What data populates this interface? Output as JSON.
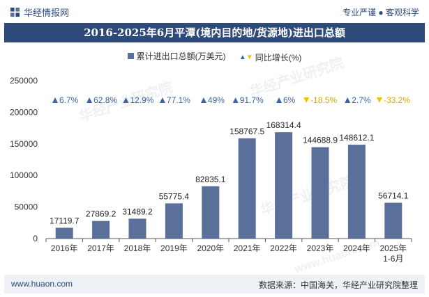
{
  "header": {
    "brand": "华经情报网",
    "tagline": "专业严谨 ● 客观科学"
  },
  "title": "2016-2025年6月平潭(境内目的地/货源地)进出口总额",
  "legend": {
    "bar_label": "累计进出口总额(万美元)",
    "line_label": "同比增长(%)"
  },
  "watermarks": [
    "华经产业研究院",
    "华经产业研究院",
    "华经产业研究院",
    "www.huaon.com"
  ],
  "footer": {
    "left": "www.huaon.com",
    "right": "数据来源：中国海关，华经产业研究院整理"
  },
  "colors": {
    "bar": "#5a6f99",
    "up": "#3e64a3",
    "down": "#f2c400",
    "title_bg": "#2e4a78"
  },
  "chart_data": {
    "type": "bar",
    "categories": [
      "2016年",
      "2017年",
      "2018年",
      "2019年",
      "2020年",
      "2021年",
      "2022年",
      "2023年",
      "2024年",
      "2025年\n1-6月"
    ],
    "series": [
      {
        "name": "累计进出口总额(万美元)",
        "values": [
          17119.7,
          27869.2,
          31489.2,
          55775.4,
          82835.1,
          158767.5,
          168314.4,
          144688.9,
          148612.1,
          56714.1
        ]
      }
    ],
    "growth": {
      "name": "同比增长(%)",
      "values": [
        6.7,
        62.8,
        12.9,
        77.1,
        49,
        91.7,
        6,
        -18.5,
        2.7,
        -33.2
      ],
      "labels": [
        "6.7%",
        "62.8%",
        "12.9%",
        "77.1%",
        "49%",
        "91.7%",
        "6%",
        "-18.5%",
        "2.7%",
        "-33.2%"
      ]
    },
    "value_labels": [
      "17119.7",
      "27869.2",
      "31489.2",
      "55775.4",
      "82835.1",
      "158767.5",
      "168314.4",
      "144688.9",
      "148612.1",
      "56714.1"
    ],
    "y_ticks": [
      "0",
      "50000",
      "100000",
      "150000",
      "200000",
      "250000"
    ],
    "ylim": [
      0,
      250000
    ],
    "grid": false
  }
}
